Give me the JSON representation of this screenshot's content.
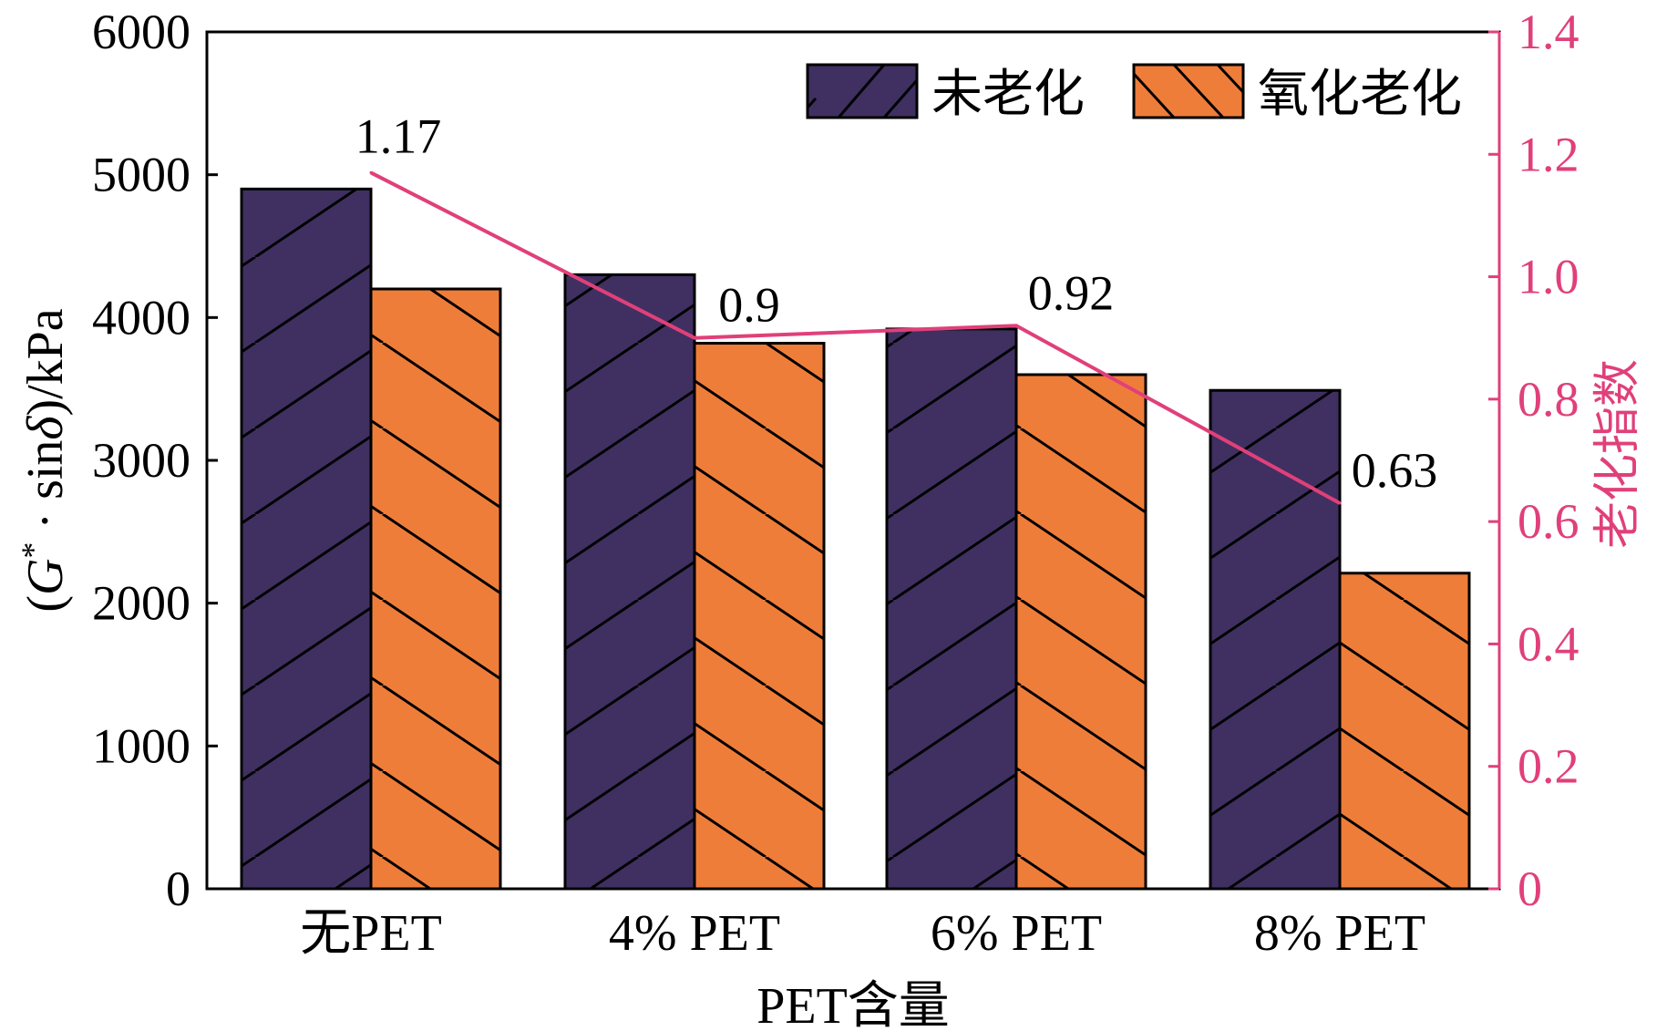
{
  "chart_data": {
    "type": "bar",
    "categories": [
      "无PET",
      "4% PET",
      "6% PET",
      "8% PET"
    ],
    "xlabel": "PET含量",
    "ylabel_parts": [
      "(",
      "G",
      "*",
      " · sin",
      "δ",
      ")/kPa"
    ],
    "ylim": [
      0,
      6000
    ],
    "yticks": [
      "0",
      "1000",
      "2000",
      "3000",
      "4000",
      "5000",
      "6000"
    ],
    "series": [
      {
        "name": "未老化",
        "values": [
          4900,
          4300,
          3920,
          3490
        ],
        "color": "#3f3061",
        "hatch": "forward-slash"
      },
      {
        "name": "氧化老化",
        "values": [
          4200,
          3820,
          3600,
          2210
        ],
        "color": "#ef7d3a",
        "hatch": "back-slash"
      }
    ],
    "secondary_axis": {
      "ylabel": "老化指数",
      "ylim": [
        0,
        1.4
      ],
      "yticks": [
        "0",
        "0.2",
        "0.4",
        "0.6",
        "0.8",
        "1.0",
        "1.2",
        "1.4"
      ],
      "color": "#e0407a",
      "series": [
        {
          "name": "老化指数",
          "values": [
            1.17,
            0.9,
            0.92,
            0.63
          ],
          "labels": [
            "1.17",
            "0.9",
            "0.92",
            "0.63"
          ]
        }
      ]
    },
    "legend_position": "top-right",
    "grid": false
  }
}
